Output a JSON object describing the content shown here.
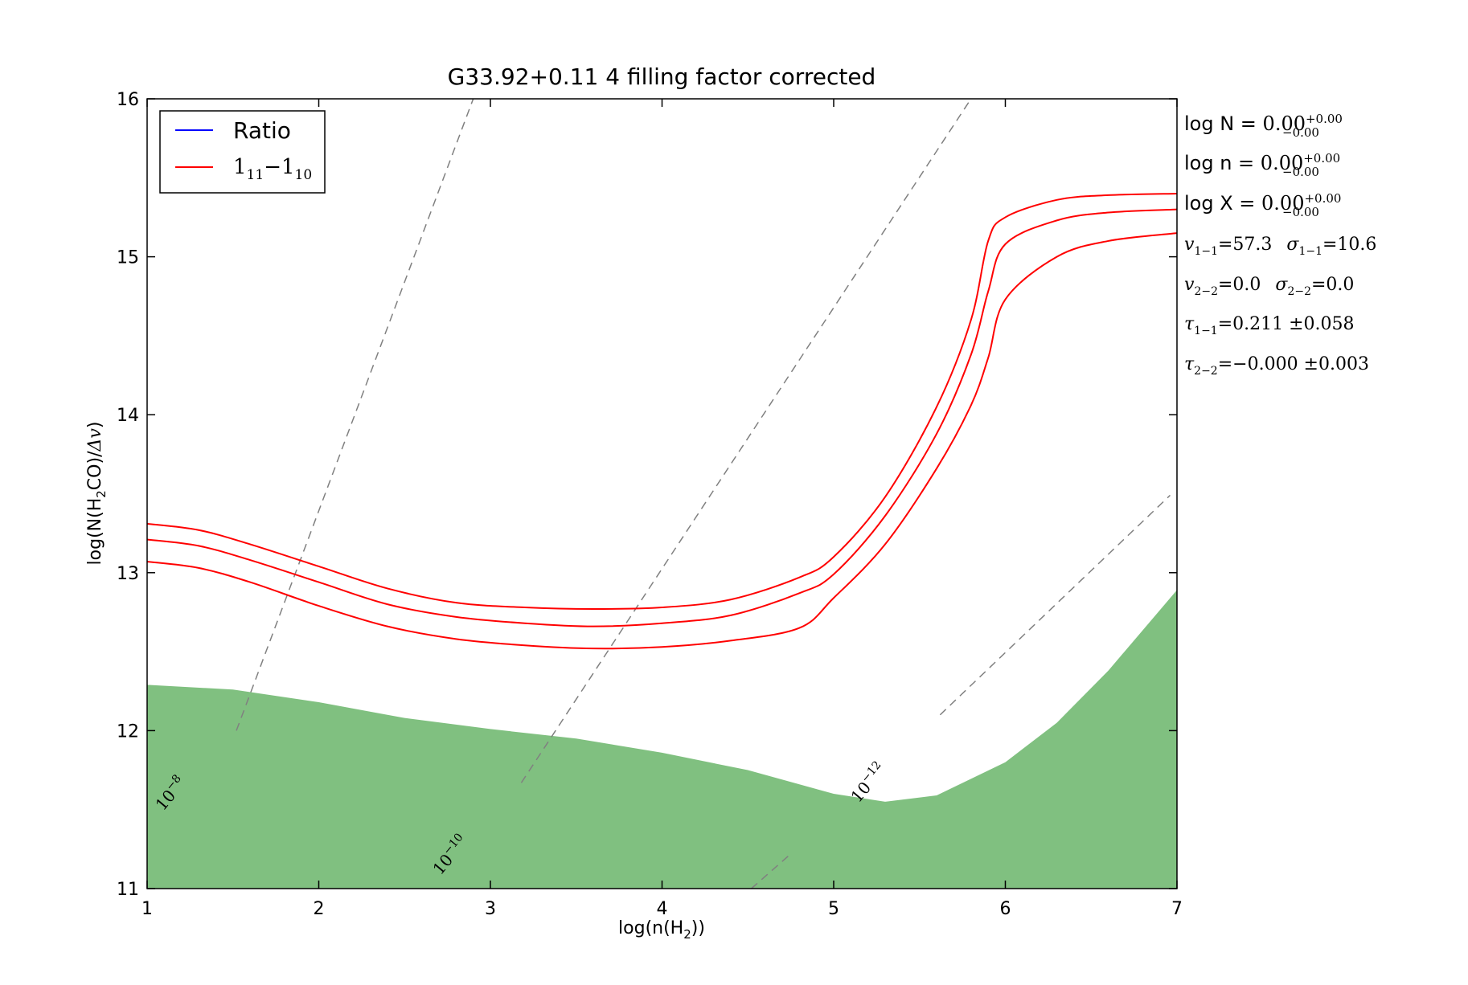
{
  "chart_data": {
    "type": "line",
    "title": "G33.92+0.11 4 filling factor corrected",
    "xlabel": "log(n(H",
    "xlabel_sub": "2",
    "xlabel_end": "))",
    "ylabel_pre": "log(N(H",
    "ylabel_sub": "2",
    "ylabel_post": "CO)/",
    "ylabel_math": "Δv",
    "ylabel_end": ")",
    "xlim": [
      1,
      7
    ],
    "ylim": [
      11,
      16
    ],
    "xticks": [
      "1",
      "2",
      "3",
      "4",
      "5",
      "6",
      "7"
    ],
    "yticks": [
      "11",
      "12",
      "13",
      "14",
      "15",
      "16"
    ],
    "grid": false,
    "legend": {
      "placement": "top-left",
      "entries": [
        {
          "label": "Ratio",
          "color": "#0000ff"
        },
        {
          "label_main": "1",
          "label_sub1": "11",
          "label_dash": "−1",
          "label_sub2": "10",
          "color": "#ff0000"
        }
      ]
    },
    "series": [
      {
        "name": "1_11-1_10",
        "role": "upper",
        "color": "#ff0000",
        "x": [
          1.0,
          1.3,
          1.6,
          2.0,
          2.4,
          2.8,
          3.2,
          3.6,
          4.0,
          4.4,
          4.8,
          5.0,
          5.3,
          5.6,
          5.8,
          5.9,
          6.0,
          6.3,
          6.6,
          7.0
        ],
        "y": [
          13.31,
          13.27,
          13.18,
          13.04,
          12.9,
          12.81,
          12.78,
          12.77,
          12.78,
          12.83,
          12.97,
          13.1,
          13.48,
          14.05,
          14.6,
          15.1,
          15.25,
          15.36,
          15.39,
          15.4
        ]
      },
      {
        "name": "1_11-1_10",
        "role": "middle",
        "color": "#ff0000",
        "x": [
          1.0,
          1.3,
          1.6,
          2.0,
          2.4,
          2.8,
          3.2,
          3.6,
          4.0,
          4.4,
          4.8,
          5.0,
          5.3,
          5.6,
          5.8,
          5.9,
          6.0,
          6.3,
          6.6,
          7.0
        ],
        "y": [
          13.21,
          13.17,
          13.08,
          12.94,
          12.8,
          12.72,
          12.68,
          12.66,
          12.68,
          12.73,
          12.87,
          12.99,
          13.36,
          13.88,
          14.38,
          14.78,
          15.08,
          15.23,
          15.28,
          15.3
        ]
      },
      {
        "name": "1_11-1_10",
        "role": "lower",
        "color": "#ff0000",
        "x": [
          1.0,
          1.3,
          1.6,
          2.0,
          2.4,
          2.8,
          3.2,
          3.6,
          4.0,
          4.4,
          4.8,
          5.0,
          5.3,
          5.6,
          5.8,
          5.9,
          6.0,
          6.3,
          6.6,
          7.0
        ],
        "y": [
          13.07,
          13.03,
          12.94,
          12.79,
          12.66,
          12.58,
          12.54,
          12.52,
          12.53,
          12.57,
          12.65,
          12.84,
          13.18,
          13.66,
          14.06,
          14.36,
          14.73,
          15.0,
          15.1,
          15.15
        ]
      }
    ],
    "filled_region": {
      "color": "#80c080",
      "x": [
        1.0,
        1.5,
        2.0,
        2.5,
        3.0,
        3.5,
        4.0,
        4.5,
        5.0,
        5.3,
        5.6,
        6.0,
        6.3,
        6.6,
        7.0
      ],
      "y": [
        12.29,
        12.26,
        12.18,
        12.08,
        12.01,
        11.95,
        11.86,
        11.75,
        11.6,
        11.55,
        11.59,
        11.8,
        12.05,
        12.38,
        12.89
      ]
    },
    "abundance_lines": [
      {
        "label": "10",
        "exp": "−8",
        "color": "#808080",
        "x": [
          1.52,
          2.9
        ],
        "y": [
          12.0,
          16.0
        ]
      },
      {
        "label": "10",
        "exp": "−10",
        "color": "#808080",
        "x": [
          3.18,
          5.8
        ],
        "y": [
          11.67,
          16.0
        ]
      },
      {
        "label": "10",
        "exp": "−12",
        "color": "#808080",
        "x": [
          4.52,
          4.75
        ],
        "y": [
          11.0,
          11.22
        ]
      },
      {
        "label": "",
        "exp": "",
        "color": "#808080",
        "x": [
          5.62,
          6.96
        ],
        "y": [
          12.1,
          13.49
        ]
      }
    ],
    "annotations": [
      {
        "pre": "log N = ",
        "math": "0.00",
        "sup": "+0.00",
        "sub": "−0.00"
      },
      {
        "pre": "log n = ",
        "math": "0.00",
        "sup": "+0.00",
        "sub": "−0.00"
      },
      {
        "pre": "log X = ",
        "math": "0.00",
        "sup": "+0.00",
        "sub": "−0.00"
      }
    ],
    "stats": {
      "v11": "v",
      "v11_sub": "1−1",
      "v11_val": "=57.3",
      "s11": "σ",
      "s11_sub": "1−1",
      "s11_val": "=10.6",
      "v22": "v",
      "v22_sub": "2−2",
      "v22_val": "=0.0",
      "s22": "σ",
      "s22_sub": "2−2",
      "s22_val": "=0.0",
      "t11": "τ",
      "t11_sub": "1−1",
      "t11_val": "=0.211 ±0.058",
      "t22": "τ",
      "t22_sub": "2−2",
      "t22_val": "=−0.000 ±0.003"
    }
  }
}
